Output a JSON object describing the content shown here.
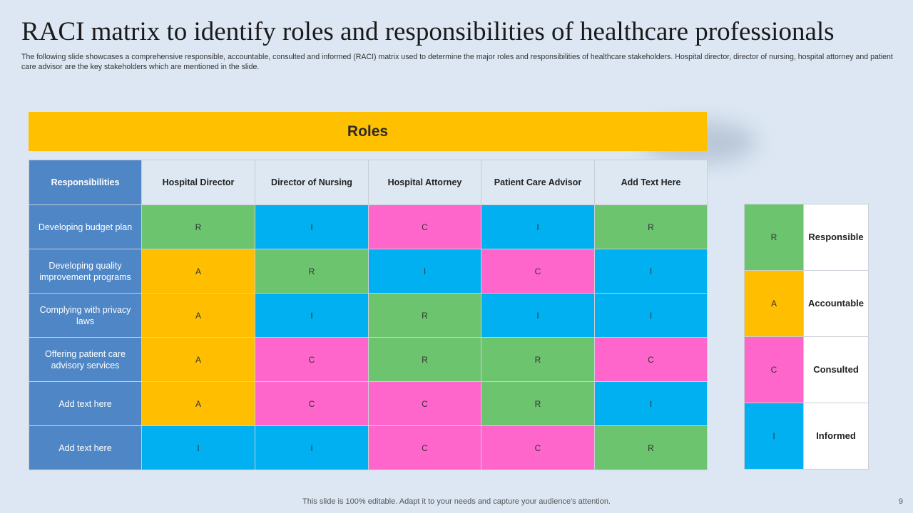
{
  "title": "RACI matrix to identify roles and responsibilities of healthcare professionals",
  "subtitle": "The following slide showcases a comprehensive responsible, accountable, consulted and informed (RACI) matrix used to determine the major roles and responsibilities of healthcare stakeholders. Hospital director, director of nursing, hospital attorney and patient care advisor are the key stakeholders which are mentioned in the slide.",
  "roles_banner": "Roles",
  "colors": {
    "R": "#6cc46f",
    "A": "#ffbf00",
    "C": "#ff66cc",
    "I": "#00b0f0",
    "banner": "#ffc000",
    "row_header": "#4f86c6",
    "header_bg": "#dde8f3",
    "background": "#dce7f3"
  },
  "matrix": {
    "corner_label": "Responsibilities",
    "columns": [
      "Hospital Director",
      "Director of Nursing",
      "Hospital Attorney",
      "Patient Care Advisor",
      "Add Text Here"
    ],
    "rows": [
      {
        "label": "Developing budget plan",
        "cells": [
          "R",
          "I",
          "C",
          "I",
          "R"
        ]
      },
      {
        "label": "Developing quality improvement programs",
        "cells": [
          "A",
          "R",
          "I",
          "C",
          "I"
        ]
      },
      {
        "label": "Complying with privacy laws",
        "cells": [
          "A",
          "I",
          "R",
          "I",
          "I"
        ]
      },
      {
        "label": "Offering patient care advisory services",
        "cells": [
          "A",
          "C",
          "R",
          "R",
          "C"
        ]
      },
      {
        "label": "Add text here",
        "cells": [
          "A",
          "C",
          "C",
          "R",
          "I"
        ]
      },
      {
        "label": "Add text here",
        "cells": [
          "I",
          "I",
          "C",
          "C",
          "R"
        ]
      }
    ]
  },
  "legend": [
    {
      "code": "R",
      "meaning": "Responsible"
    },
    {
      "code": "A",
      "meaning": "Accountable"
    },
    {
      "code": "C",
      "meaning": "Consulted"
    },
    {
      "code": "I",
      "meaning": "Informed"
    }
  ],
  "footer": "This slide is 100% editable. Adapt it to your needs and capture your audience's attention.",
  "page_number": "9"
}
